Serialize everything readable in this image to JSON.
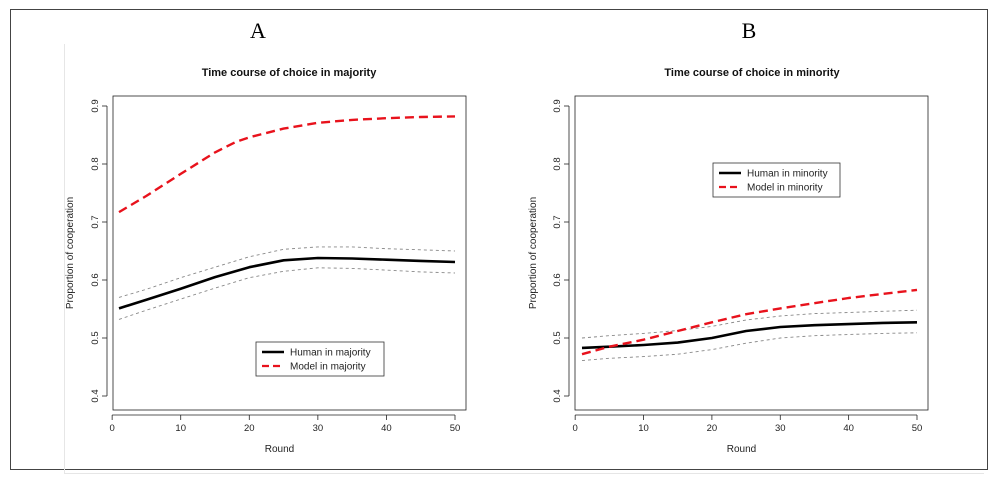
{
  "panels": [
    {
      "letter": "A",
      "title": "Time course of choice in majority"
    },
    {
      "letter": "B",
      "title": "Time course of choice in minority"
    }
  ],
  "chart_data": [
    {
      "type": "line",
      "panel_label": "A",
      "title": "Time course of choice in majority",
      "xlabel": "Round",
      "ylabel": "Proportion of cooperation",
      "xlim": [
        0,
        51
      ],
      "ylim": [
        0.4,
        0.9
      ],
      "xticks": [
        0,
        10,
        20,
        30,
        40,
        50
      ],
      "yticks": [
        0.4,
        0.5,
        0.6,
        0.7,
        0.8,
        0.9
      ],
      "ytick_labels": [
        "0.4",
        "0.5",
        "0.6",
        "0.7",
        "0.8",
        "0.9"
      ],
      "legend_position": "bottom-center",
      "series": [
        {
          "name": "Human in majority",
          "style": "solid",
          "color": "#000000",
          "x": [
            1,
            5,
            10,
            15,
            20,
            25,
            30,
            35,
            40,
            45,
            50
          ],
          "y": [
            0.551,
            0.566,
            0.585,
            0.605,
            0.622,
            0.634,
            0.638,
            0.637,
            0.635,
            0.633,
            0.631
          ]
        },
        {
          "name": "Model in majority",
          "style": "dashed",
          "color": "#e8121c",
          "x": [
            1,
            5,
            10,
            15,
            18,
            20,
            25,
            30,
            35,
            40,
            45,
            50
          ],
          "y": [
            0.717,
            0.745,
            0.783,
            0.82,
            0.838,
            0.846,
            0.861,
            0.871,
            0.876,
            0.879,
            0.881,
            0.882
          ]
        },
        {
          "name": "Human upper bound",
          "style": "dotted",
          "color": "#888888",
          "in_legend": false,
          "x": [
            1,
            5,
            10,
            15,
            20,
            25,
            30,
            35,
            40,
            45,
            50
          ],
          "y": [
            0.57,
            0.584,
            0.604,
            0.622,
            0.64,
            0.653,
            0.657,
            0.657,
            0.654,
            0.652,
            0.65
          ]
        },
        {
          "name": "Human lower bound",
          "style": "dotted",
          "color": "#888888",
          "in_legend": false,
          "x": [
            1,
            5,
            10,
            15,
            20,
            25,
            30,
            35,
            40,
            45,
            50
          ],
          "y": [
            0.532,
            0.548,
            0.567,
            0.586,
            0.604,
            0.615,
            0.621,
            0.62,
            0.617,
            0.614,
            0.612
          ]
        }
      ]
    },
    {
      "type": "line",
      "panel_label": "B",
      "title": "Time course of choice in minority",
      "xlabel": "Round",
      "ylabel": "Proportion of cooperation",
      "xlim": [
        0,
        51
      ],
      "ylim": [
        0.4,
        0.9
      ],
      "xticks": [
        0,
        10,
        20,
        30,
        40,
        50
      ],
      "yticks": [
        0.4,
        0.5,
        0.6,
        0.7,
        0.8,
        0.9
      ],
      "ytick_labels": [
        "0.4",
        "0.5",
        "0.6",
        "0.7",
        "0.8",
        "0.9"
      ],
      "legend_position": "top-center",
      "series": [
        {
          "name": "Human in minority",
          "style": "solid",
          "color": "#000000",
          "x": [
            1,
            5,
            10,
            15,
            20,
            25,
            30,
            35,
            40,
            45,
            50
          ],
          "y": [
            0.483,
            0.485,
            0.488,
            0.492,
            0.5,
            0.512,
            0.519,
            0.522,
            0.524,
            0.526,
            0.527
          ]
        },
        {
          "name": "Model in minority",
          "style": "dashed",
          "color": "#e8121c",
          "x": [
            1,
            5,
            10,
            15,
            20,
            25,
            30,
            35,
            40,
            45,
            50
          ],
          "y": [
            0.472,
            0.485,
            0.497,
            0.512,
            0.527,
            0.541,
            0.551,
            0.56,
            0.569,
            0.576,
            0.583
          ]
        },
        {
          "name": "Human upper bound",
          "style": "dotted",
          "color": "#888888",
          "in_legend": false,
          "x": [
            1,
            5,
            10,
            15,
            20,
            25,
            30,
            35,
            40,
            45,
            50
          ],
          "y": [
            0.5,
            0.504,
            0.508,
            0.513,
            0.52,
            0.531,
            0.538,
            0.542,
            0.544,
            0.546,
            0.548
          ]
        },
        {
          "name": "Human lower bound",
          "style": "dotted",
          "color": "#888888",
          "in_legend": false,
          "x": [
            1,
            5,
            10,
            15,
            20,
            25,
            30,
            35,
            40,
            45,
            50
          ],
          "y": [
            0.461,
            0.465,
            0.468,
            0.472,
            0.48,
            0.491,
            0.5,
            0.504,
            0.506,
            0.508,
            0.509
          ]
        }
      ]
    }
  ]
}
